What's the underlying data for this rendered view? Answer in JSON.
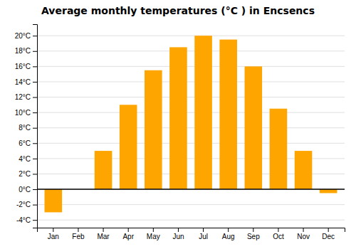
{
  "chart_data": {
    "type": "bar",
    "title": "Average monthly temperatures (°C ) in Encsencs",
    "categories": [
      "Jan",
      "Feb",
      "Mar",
      "Apr",
      "May",
      "Jun",
      "Jul",
      "Aug",
      "Sep",
      "Oct",
      "Nov",
      "Dec"
    ],
    "values": [
      -3.0,
      0.0,
      5.0,
      11.0,
      15.5,
      18.5,
      20.0,
      19.5,
      16.0,
      10.5,
      5.0,
      -0.5
    ],
    "color": "#FFA500",
    "ylim": [
      -5,
      21.5
    ],
    "yticks": [
      {
        "value": -4,
        "label": "-4°C"
      },
      {
        "value": -2,
        "label": "-2°C"
      },
      {
        "value": 0,
        "label": "0°C"
      },
      {
        "value": 2,
        "label": "2°C"
      },
      {
        "value": 4,
        "label": "4°C"
      },
      {
        "value": 6,
        "label": "6°C"
      },
      {
        "value": 8,
        "label": "8°C"
      },
      {
        "value": 10,
        "label": "10°C"
      },
      {
        "value": 12,
        "label": "12°C"
      },
      {
        "value": 14,
        "label": "14°C"
      },
      {
        "value": 16,
        "label": "16°C"
      },
      {
        "value": 18,
        "label": "18°C"
      },
      {
        "value": 20,
        "label": "20°C"
      }
    ],
    "grid": true
  }
}
